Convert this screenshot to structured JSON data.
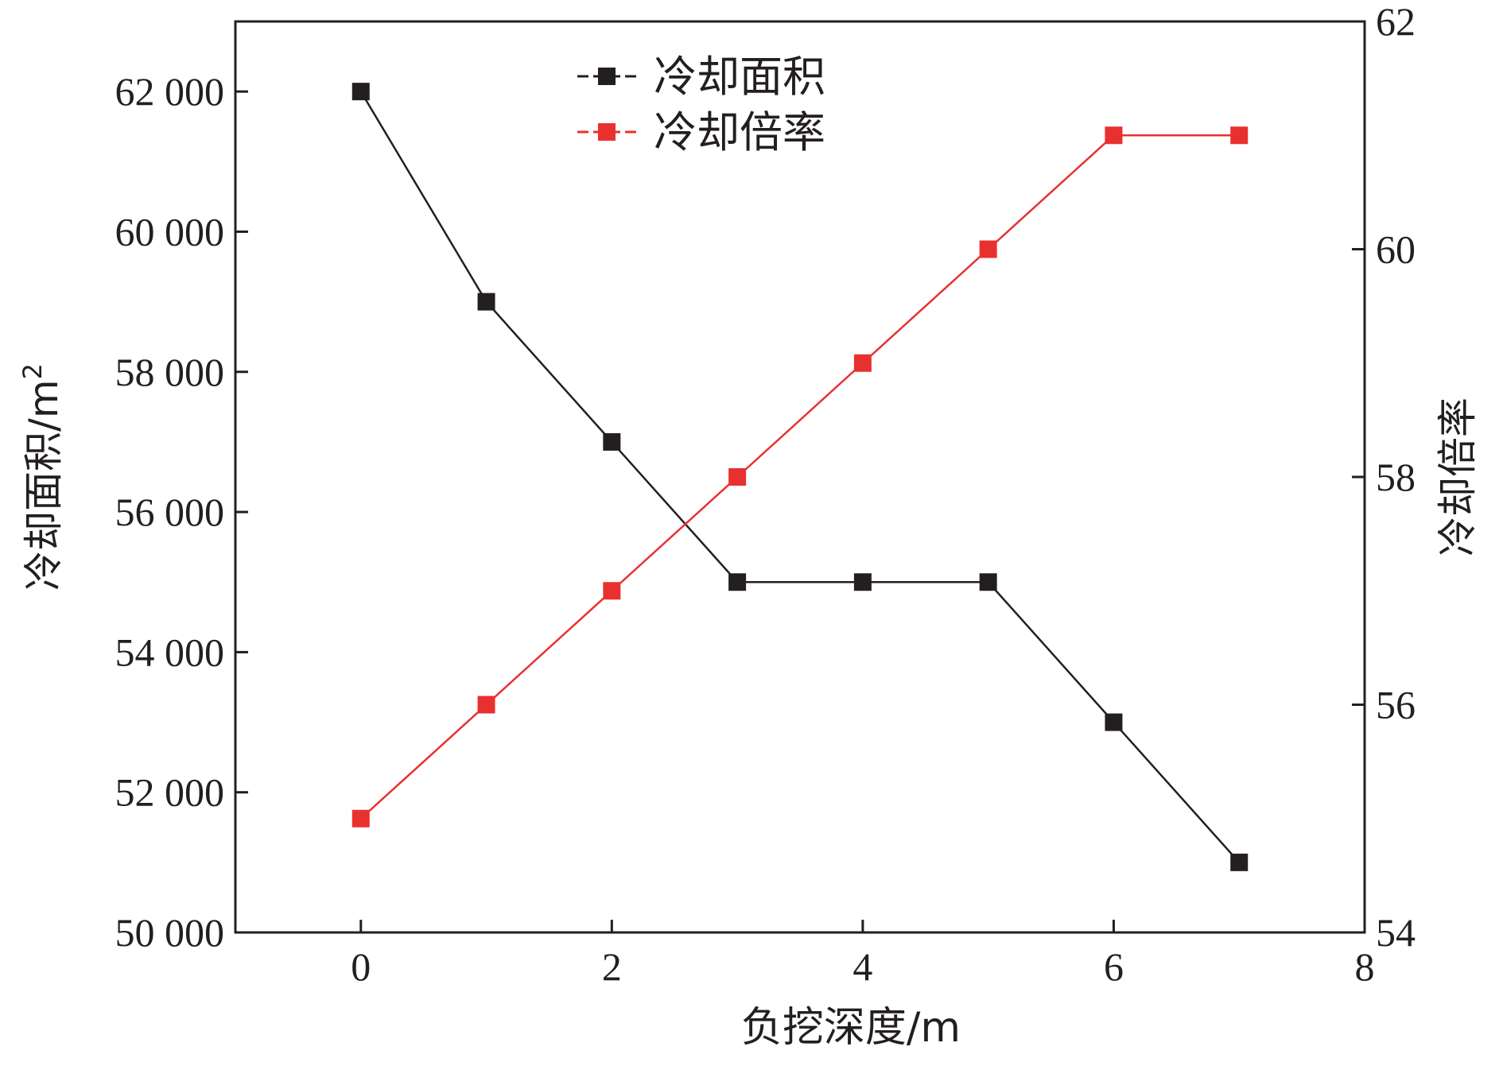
{
  "chart_data": {
    "type": "line",
    "x": [
      0,
      1,
      2,
      3,
      4,
      5,
      6,
      7
    ],
    "xlim": [
      -1,
      8
    ],
    "x_ticks": [
      0,
      2,
      4,
      6,
      8
    ],
    "x_tick_labels": [
      "0",
      "2",
      "4",
      "6",
      "8"
    ],
    "xlabel": "负挖深度/m",
    "left_axis": {
      "label": "冷却面积/m",
      "label_superscript": "2",
      "lim": [
        50000,
        63000
      ],
      "ticks": [
        50000,
        52000,
        54000,
        56000,
        58000,
        60000,
        62000
      ],
      "tick_labels": [
        "50 000",
        "52 000",
        "54 000",
        "56 000",
        "58 000",
        "60 000",
        "62 000"
      ]
    },
    "right_axis": {
      "label": "冷却倍率",
      "lim": [
        54,
        62
      ],
      "ticks": [
        54,
        56,
        58,
        60,
        62
      ],
      "tick_labels": [
        "54",
        "56",
        "58",
        "60",
        "62"
      ]
    },
    "series": [
      {
        "name": "冷却面积",
        "axis": "left",
        "color": "#231f20",
        "marker": "square",
        "values": [
          62000,
          59000,
          57000,
          55000,
          55000,
          55000,
          53000,
          51000
        ]
      },
      {
        "name": "冷却倍率",
        "axis": "right",
        "color": "#e8312f",
        "marker": "square",
        "values": [
          55,
          56,
          57,
          58,
          59,
          60,
          61,
          61
        ]
      }
    ],
    "legend": {
      "position": "top-center"
    },
    "grid": false
  }
}
